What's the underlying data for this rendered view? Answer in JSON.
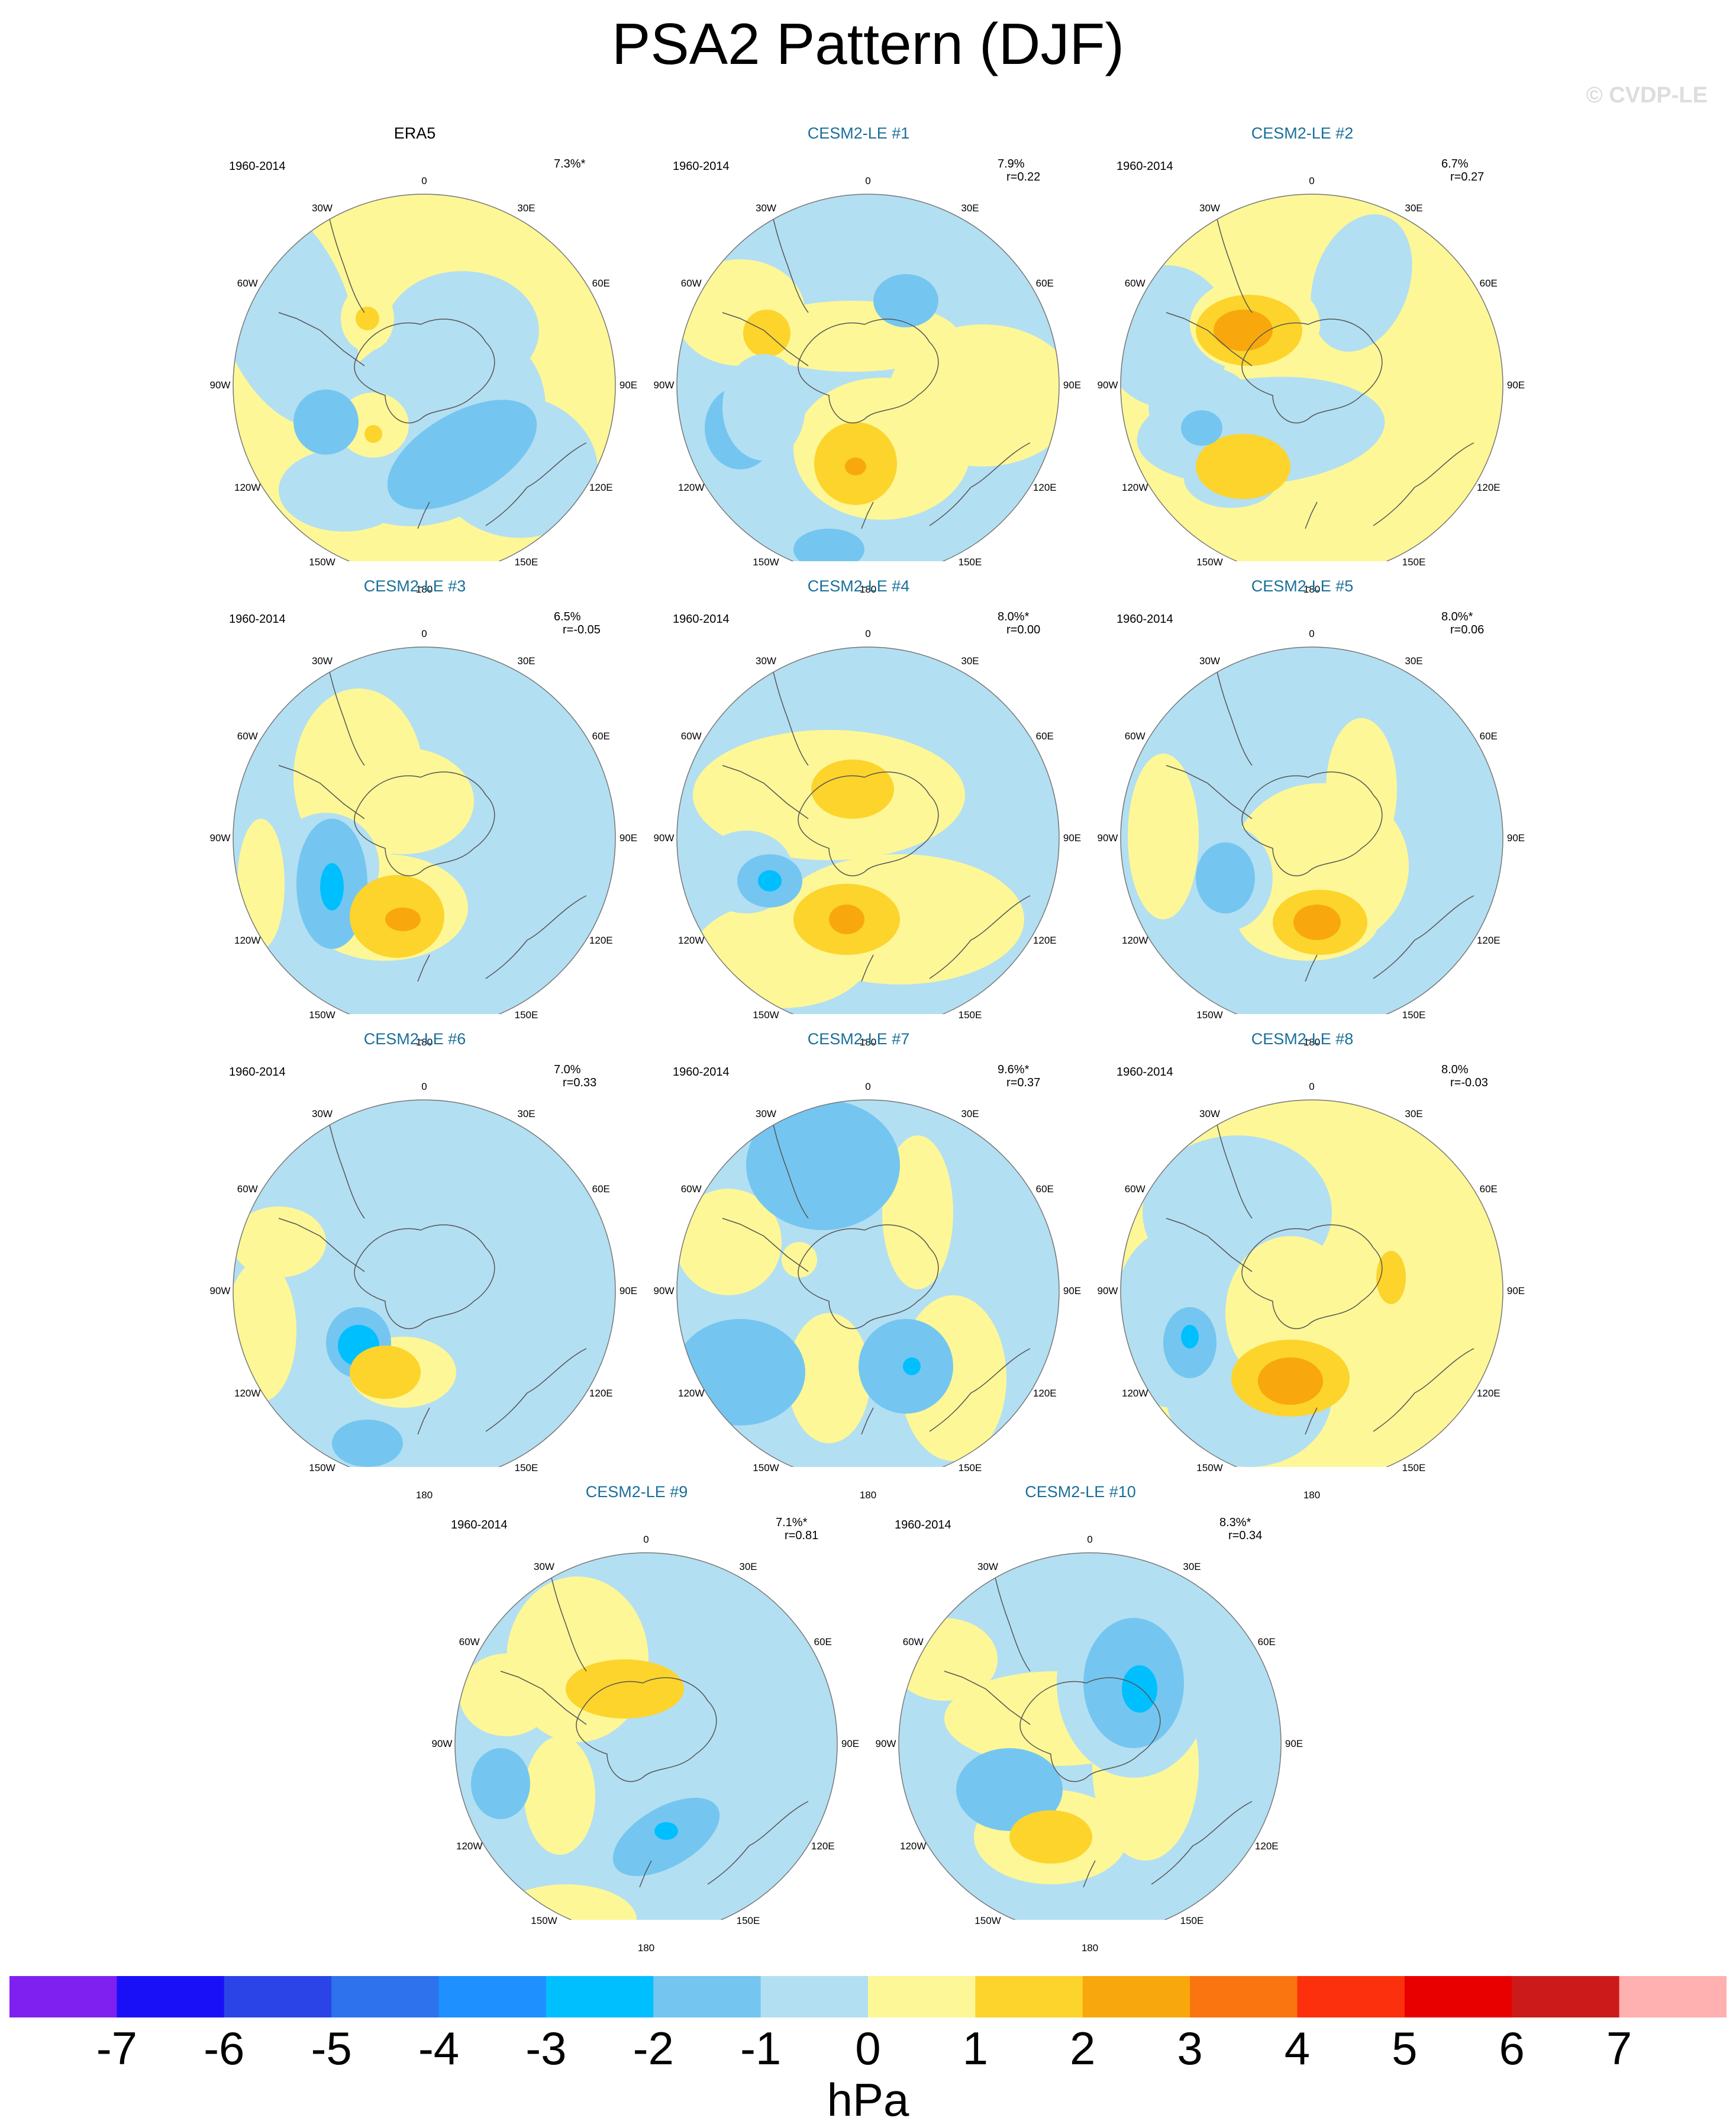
{
  "title": "PSA2 Pattern (DJF)",
  "watermark": "© CVDP-LE",
  "period": "1960-2014",
  "lon_labels": [
    "0",
    "30E",
    "60E",
    "90E",
    "120E",
    "150E",
    "180",
    "150W",
    "120W",
    "90W",
    "60W",
    "30W"
  ],
  "panels": [
    {
      "title": "ERA5",
      "stat1": "7.3%*",
      "stat2": ""
    },
    {
      "title": "CESM2-LE #1",
      "stat1": "7.9%",
      "stat2": "r=0.22"
    },
    {
      "title": "CESM2-LE #2",
      "stat1": "6.7%",
      "stat2": "r=0.27"
    },
    {
      "title": "CESM2-LE #3",
      "stat1": "6.5%",
      "stat2": "r=-0.05"
    },
    {
      "title": "CESM2-LE #4",
      "stat1": "8.0%*",
      "stat2": "r=0.00"
    },
    {
      "title": "CESM2-LE #5",
      "stat1": "8.0%*",
      "stat2": "r=0.06"
    },
    {
      "title": "CESM2-LE #6",
      "stat1": "7.0%",
      "stat2": "r=0.33"
    },
    {
      "title": "CESM2-LE #7",
      "stat1": "9.6%*",
      "stat2": "r=0.37"
    },
    {
      "title": "CESM2-LE #8",
      "stat1": "8.0%",
      "stat2": "r=-0.03"
    },
    {
      "title": "CESM2-LE #9",
      "stat1": "7.1%*",
      "stat2": "r=0.81"
    },
    {
      "title": "CESM2-LE #10",
      "stat1": "8.3%*",
      "stat2": "r=0.34"
    }
  ],
  "colorbar": {
    "unit": "hPa",
    "ticks": [
      "-7",
      "-6",
      "-5",
      "-4",
      "-3",
      "-2",
      "-1",
      "0",
      "1",
      "2",
      "3",
      "4",
      "5",
      "6",
      "7"
    ],
    "colors": [
      "#8020f0",
      "#1a10f8",
      "#2a44e8",
      "#2e72ee",
      "#1e90ff",
      "#00bfff",
      "#74c6f0",
      "#b3dff2",
      "#fdf797",
      "#fcd42c",
      "#f8a80c",
      "#fa7410",
      "#fc300c",
      "#e80000",
      "#cc1a1a",
      "#ffb0b0"
    ]
  },
  "colors": {
    "neg1": "#b3dff2",
    "neg2": "#74c6f0",
    "neg3": "#00bfff",
    "pos1": "#fdf797",
    "pos2": "#fcd42c",
    "pos3": "#f8a80c",
    "title_model": "#1a6f9a"
  }
}
